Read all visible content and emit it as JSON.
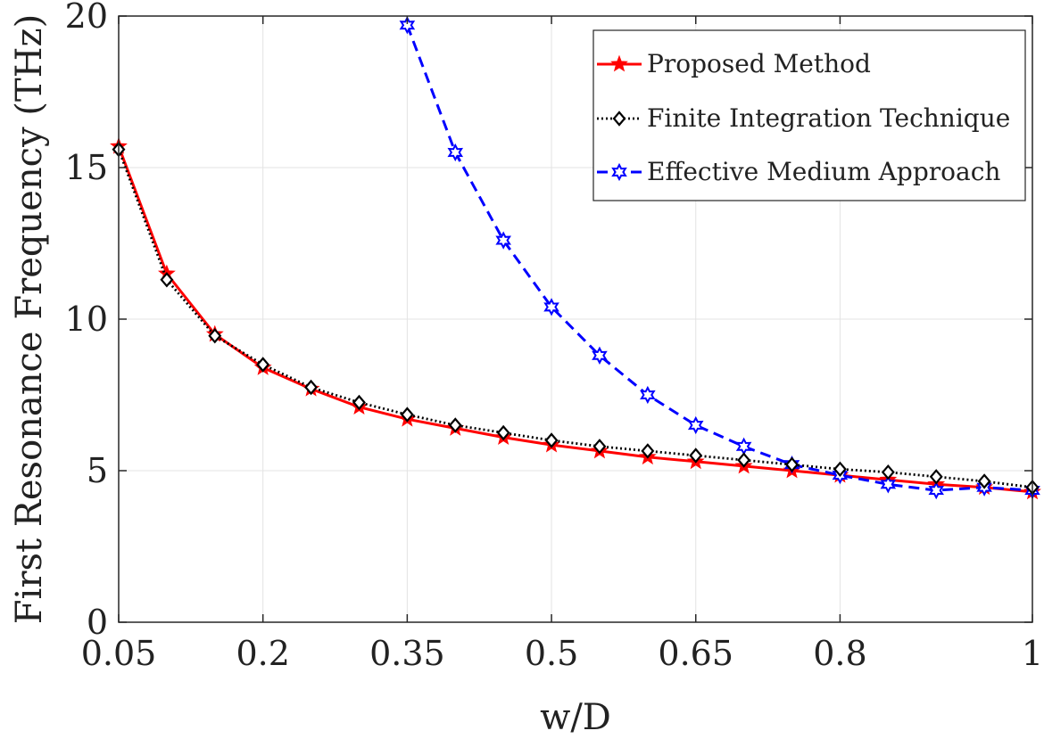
{
  "chart_data": {
    "type": "line",
    "xlabel": "w/D",
    "ylabel": "First Resonance Frequency (THz)",
    "xlim": [
      0.05,
      1.0
    ],
    "ylim": [
      0,
      20
    ],
    "xticks": [
      0.05,
      0.2,
      0.35,
      0.5,
      0.65,
      0.8,
      1.0
    ],
    "xtick_labels": [
      "0.05",
      "0.2",
      "0.35",
      "0.5",
      "0.65",
      "0.8",
      "1"
    ],
    "yticks": [
      0,
      5,
      10,
      15,
      20
    ],
    "ytick_labels": [
      "0",
      "5",
      "10",
      "15",
      "20"
    ],
    "grid": true,
    "legend_position": "top-right",
    "series": [
      {
        "name": "Proposed Method",
        "color": "#ff0000",
        "line_style": "solid",
        "marker": "star-5",
        "x": [
          0.05,
          0.1,
          0.15,
          0.2,
          0.25,
          0.3,
          0.35,
          0.4,
          0.45,
          0.5,
          0.55,
          0.6,
          0.65,
          0.7,
          0.75,
          0.8,
          0.85,
          0.9,
          0.95,
          1.0
        ],
        "values": [
          15.7,
          11.5,
          9.5,
          8.4,
          7.7,
          7.1,
          6.7,
          6.4,
          6.1,
          5.85,
          5.65,
          5.45,
          5.3,
          5.15,
          5.0,
          4.85,
          4.7,
          4.55,
          4.45,
          4.3
        ]
      },
      {
        "name": "Finite Integration Technique",
        "color": "#000000",
        "line_style": "dotted",
        "marker": "diamond",
        "x": [
          0.05,
          0.1,
          0.15,
          0.2,
          0.25,
          0.3,
          0.35,
          0.4,
          0.45,
          0.5,
          0.55,
          0.6,
          0.65,
          0.7,
          0.75,
          0.8,
          0.85,
          0.9,
          0.95,
          1.0
        ],
        "values": [
          15.6,
          11.3,
          9.45,
          8.5,
          7.75,
          7.25,
          6.85,
          6.5,
          6.25,
          6.0,
          5.8,
          5.65,
          5.5,
          5.35,
          5.2,
          5.05,
          4.95,
          4.8,
          4.65,
          4.45
        ]
      },
      {
        "name": "Effective Medium Approach",
        "color": "#0000ff",
        "line_style": "dashed",
        "marker": "star-6",
        "x": [
          0.35,
          0.4,
          0.45,
          0.5,
          0.55,
          0.6,
          0.65,
          0.7,
          0.75,
          0.8,
          0.85,
          0.9,
          0.95,
          1.0
        ],
        "values": [
          19.7,
          15.5,
          12.6,
          10.4,
          8.8,
          7.5,
          6.5,
          5.8,
          5.2,
          4.85,
          4.55,
          4.35,
          4.45,
          4.35
        ]
      }
    ]
  }
}
